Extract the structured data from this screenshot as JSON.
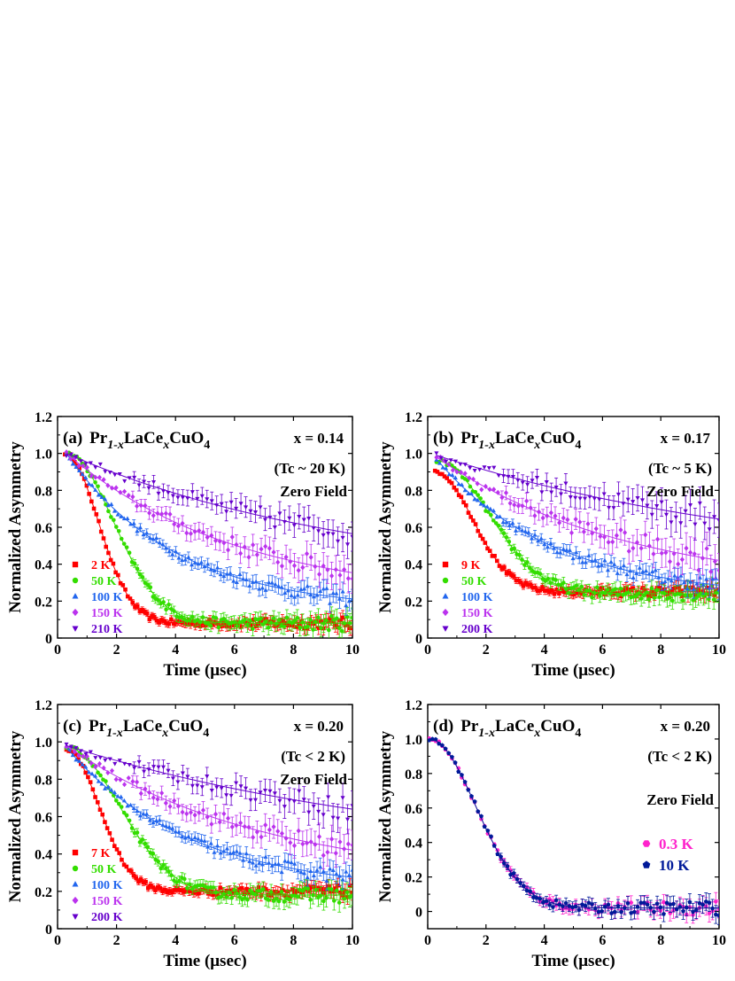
{
  "figure": {
    "x_label": "Time (μsec)",
    "y_label": "Normalized Asymmetry"
  },
  "chart_data": [
    {
      "type": "scatter",
      "panel_label": "(a)",
      "compound": {
        "p1": "Pr",
        "s1": "1-x",
        "p2": "LaCe",
        "s2": "x",
        "p3": "CuO",
        "s3": "4"
      },
      "x_annotation": "x = 0.14",
      "tc_annotation": "(Tc ~ 20 K)",
      "field_annotation": "Zero Field",
      "xlim": [
        0,
        10
      ],
      "ylim": [
        0,
        1.2
      ],
      "x_ticks": [
        0,
        2,
        4,
        6,
        8,
        10
      ],
      "y_ticks": [
        0,
        0.2,
        0.4,
        0.6,
        0.8,
        1.0,
        1.2
      ],
      "series": [
        {
          "name": "2 K",
          "color": "#ff0000",
          "marker": "square",
          "y0": 1.0,
          "start": 0.25,
          "rate": 0.55,
          "delta": 0.6,
          "base": 0.08,
          "noise": 0.015,
          "points": 120
        },
        {
          "name": "50 K",
          "color": "#33dd00",
          "marker": "circle",
          "y0": 1.0,
          "start": 0.3,
          "rate": 0.45,
          "delta": 0.45,
          "base": 0.08,
          "noise": 0.02,
          "points": 110
        },
        {
          "name": "100 K",
          "color": "#2266ee",
          "marker": "triangle-up",
          "y0": 1.0,
          "start": 0.3,
          "rate": 0.27,
          "delta": 0.0,
          "base": 0.15,
          "noise": 0.02,
          "points": 90
        },
        {
          "name": "150 K",
          "color": "#bb33ee",
          "marker": "diamond",
          "y0": 1.0,
          "start": 0.3,
          "rate": 0.17,
          "delta": 0.0,
          "base": 0.2,
          "noise": 0.03,
          "points": 70
        },
        {
          "name": "210 K",
          "color": "#6600cc",
          "marker": "triangle-down",
          "y0": 1.0,
          "start": 0.3,
          "rate": 0.1,
          "delta": 0.0,
          "base": 0.3,
          "noise": 0.03,
          "points": 60
        }
      ]
    },
    {
      "type": "scatter",
      "panel_label": "(b)",
      "compound": {
        "p1": "Pr",
        "s1": "1-x",
        "p2": "LaCe",
        "s2": "x",
        "p3": "CuO",
        "s3": "4"
      },
      "x_annotation": "x = 0.17",
      "tc_annotation": "(Tc ~ 5 K)",
      "field_annotation": "Zero Field",
      "xlim": [
        0,
        10
      ],
      "ylim": [
        0,
        1.2
      ],
      "x_ticks": [
        0,
        2,
        4,
        6,
        8,
        10
      ],
      "y_ticks": [
        0,
        0.2,
        0.4,
        0.6,
        0.8,
        1.0,
        1.2
      ],
      "series": [
        {
          "name": "9 K",
          "color": "#ff0000",
          "marker": "square",
          "y0": 0.9,
          "start": 0.25,
          "rate": 0.55,
          "delta": 0.45,
          "base": 0.25,
          "noise": 0.015,
          "points": 120
        },
        {
          "name": "50 K",
          "color": "#33dd00",
          "marker": "circle",
          "y0": 0.96,
          "start": 0.3,
          "rate": 0.45,
          "delta": 0.35,
          "base": 0.24,
          "noise": 0.02,
          "points": 110
        },
        {
          "name": "100 K",
          "color": "#2266ee",
          "marker": "triangle-up",
          "y0": 0.97,
          "start": 0.3,
          "rate": 0.25,
          "delta": 0.0,
          "base": 0.22,
          "noise": 0.02,
          "points": 90
        },
        {
          "name": "150 K",
          "color": "#bb33ee",
          "marker": "diamond",
          "y0": 0.98,
          "start": 0.3,
          "rate": 0.15,
          "delta": 0.0,
          "base": 0.25,
          "noise": 0.035,
          "points": 70
        },
        {
          "name": "200 K",
          "color": "#6600cc",
          "marker": "triangle-down",
          "y0": 0.99,
          "start": 0.3,
          "rate": 0.08,
          "delta": 0.0,
          "base": 0.35,
          "noise": 0.035,
          "points": 60
        }
      ]
    },
    {
      "type": "scatter",
      "panel_label": "(c)",
      "compound": {
        "p1": "Pr",
        "s1": "1-x",
        "p2": "LaCe",
        "s2": "x",
        "p3": "CuO",
        "s3": "4"
      },
      "x_annotation": "x = 0.20",
      "tc_annotation": "(Tc < 2 K)",
      "field_annotation": "Zero Field",
      "xlim": [
        0,
        10
      ],
      "ylim": [
        0,
        1.2
      ],
      "x_ticks": [
        0,
        2,
        4,
        6,
        8,
        10
      ],
      "y_ticks": [
        0,
        0.2,
        0.4,
        0.6,
        0.8,
        1.0,
        1.2
      ],
      "series": [
        {
          "name": "7 K",
          "color": "#ff0000",
          "marker": "square",
          "y0": 0.96,
          "start": 0.3,
          "rate": 0.65,
          "delta": 0.45,
          "base": 0.2,
          "noise": 0.015,
          "points": 120
        },
        {
          "name": "50 K",
          "color": "#33dd00",
          "marker": "circle",
          "y0": 0.97,
          "start": 0.3,
          "rate": 0.45,
          "delta": 0.35,
          "base": 0.18,
          "noise": 0.02,
          "points": 110
        },
        {
          "name": "100 K",
          "color": "#2266ee",
          "marker": "triangle-up",
          "y0": 0.97,
          "start": 0.3,
          "rate": 0.24,
          "delta": 0.0,
          "base": 0.2,
          "noise": 0.02,
          "points": 90
        },
        {
          "name": "150 K",
          "color": "#bb33ee",
          "marker": "diamond",
          "y0": 0.98,
          "start": 0.3,
          "rate": 0.15,
          "delta": 0.0,
          "base": 0.25,
          "noise": 0.03,
          "points": 70
        },
        {
          "name": "200 K",
          "color": "#6600cc",
          "marker": "triangle-down",
          "y0": 0.98,
          "start": 0.3,
          "rate": 0.08,
          "delta": 0.0,
          "base": 0.35,
          "noise": 0.03,
          "points": 60
        }
      ]
    },
    {
      "type": "scatter",
      "panel_label": "(d)",
      "compound": {
        "p1": "Pr",
        "s1": "1-x",
        "p2": "LaCe",
        "s2": "x",
        "p3": "CuO",
        "s3": "4"
      },
      "x_annotation": "x = 0.20",
      "tc_annotation": "(Tc < 2 K)",
      "field_annotation": "Zero Field",
      "xlim": [
        0,
        10
      ],
      "ylim": [
        -0.1,
        1.2
      ],
      "x_ticks": [
        0,
        2,
        4,
        6,
        8,
        10
      ],
      "y_ticks": [
        0,
        0.2,
        0.4,
        0.6,
        0.8,
        1.0,
        1.2
      ],
      "legend_big": true,
      "series": [
        {
          "name": "0.3 K",
          "color": "#ff22cc",
          "marker": "hexagon",
          "y0": 1.0,
          "start": 0.05,
          "rate": 0.3,
          "delta": 1.0,
          "base": 0.02,
          "noise": 0.02,
          "points": 90
        },
        {
          "name": "10 K",
          "color": "#001a99",
          "marker": "pentagon",
          "y0": 1.0,
          "start": 0.05,
          "rate": 0.3,
          "delta": 1.0,
          "base": 0.02,
          "noise": 0.02,
          "points": 90
        }
      ]
    }
  ]
}
